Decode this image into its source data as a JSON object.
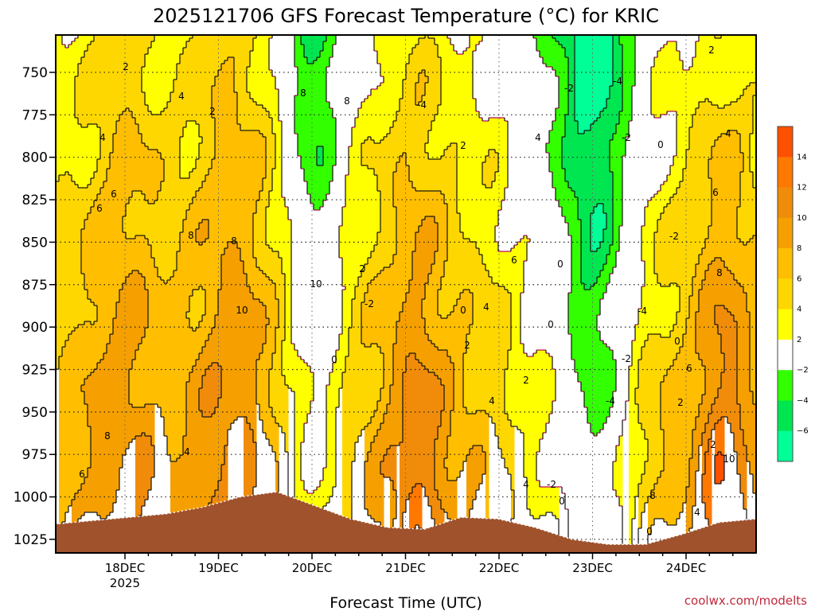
{
  "chart_data": {
    "type": "contour",
    "title": "2025121706 GFS Forecast Temperature (°C) for KRIC",
    "xlabel": "Forecast Time (UTC)",
    "ylabel": "",
    "x_ticks": [
      "18DEC",
      "19DEC",
      "20DEC",
      "21DEC",
      "22DEC",
      "23DEC",
      "24DEC"
    ],
    "x_year_label": "2025",
    "y_ticks": [
      750,
      775,
      800,
      825,
      850,
      875,
      900,
      925,
      950,
      975,
      1000,
      1025
    ],
    "ylim": [
      728,
      1033
    ],
    "y_inverted": true,
    "grid": true,
    "colorbar": {
      "tick_labels": [
        "14",
        "12",
        "10",
        "8",
        "6",
        "4",
        "2",
        "−2",
        "−4",
        "−6"
      ],
      "bands": [
        {
          "range": "14 to 16",
          "color": "#ff5000"
        },
        {
          "range": "12 to 14",
          "color": "#ff7800"
        },
        {
          "range": "10 to 12",
          "color": "#f08c0a"
        },
        {
          "range": "8 to 10",
          "color": "#f5a000"
        },
        {
          "range": "6 to 8",
          "color": "#ffbe00"
        },
        {
          "range": "4 to 6",
          "color": "#ffd700"
        },
        {
          "range": "2 to 4",
          "color": "#ffff00"
        },
        {
          "range": "-2 to 2",
          "color": "#ffffff"
        },
        {
          "range": "-4 to -2",
          "color": "#32ff00"
        },
        {
          "range": "-6 to -4",
          "color": "#00e650"
        },
        {
          "range": "-8 to -6",
          "color": "#00ff96"
        }
      ]
    },
    "surface_pressure": [
      1016,
      1014,
      1012,
      1010,
      1006,
      1000,
      997,
      1005,
      1013,
      1018,
      1019,
      1012,
      1013,
      1018,
      1025,
      1028,
      1028,
      1022,
      1015,
      1013
    ],
    "contour_labels": [
      "2",
      "4",
      "4",
      "6",
      "6",
      "8",
      "8",
      "10",
      "8",
      "2",
      "4",
      "6",
      "8",
      "8",
      "10",
      "0",
      "2",
      "-2",
      "-4",
      "2",
      "0",
      "4",
      "2",
      "4",
      "2",
      "4",
      "6",
      "4",
      "0",
      "0",
      "-2",
      "-4",
      "-2",
      "-2",
      "-4",
      "-2",
      "0",
      "0",
      "-4",
      "-2",
      "0",
      "2",
      "2",
      "4",
      "6",
      "8",
      "6",
      "4",
      "2",
      "10",
      "8",
      "0"
    ],
    "credit": "coolwx.com/modelts"
  }
}
